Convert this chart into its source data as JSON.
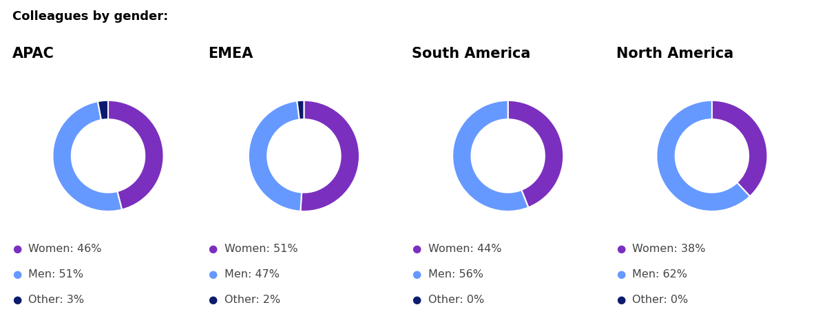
{
  "title": "Colleagues by gender:",
  "title_fontsize": 13,
  "title_fontweight": "bold",
  "regions": [
    "APAC",
    "EMEA",
    "South America",
    "North America"
  ],
  "data": {
    "APAC": {
      "Women": 46,
      "Men": 51,
      "Other": 3
    },
    "EMEA": {
      "Women": 51,
      "Men": 47,
      "Other": 2
    },
    "South America": {
      "Women": 44,
      "Men": 56,
      "Other": 0
    },
    "North America": {
      "Women": 38,
      "Men": 62,
      "Other": 0
    }
  },
  "colors": {
    "Women": "#7B2FBE",
    "Men": "#6699FF",
    "Other": "#0D1B6E"
  },
  "legend_dot_size": 11,
  "legend_fontsize": 11.5,
  "region_title_fontsize": 15,
  "region_title_fontweight": "bold",
  "background_color": "#ffffff",
  "donut_width": 0.34
}
